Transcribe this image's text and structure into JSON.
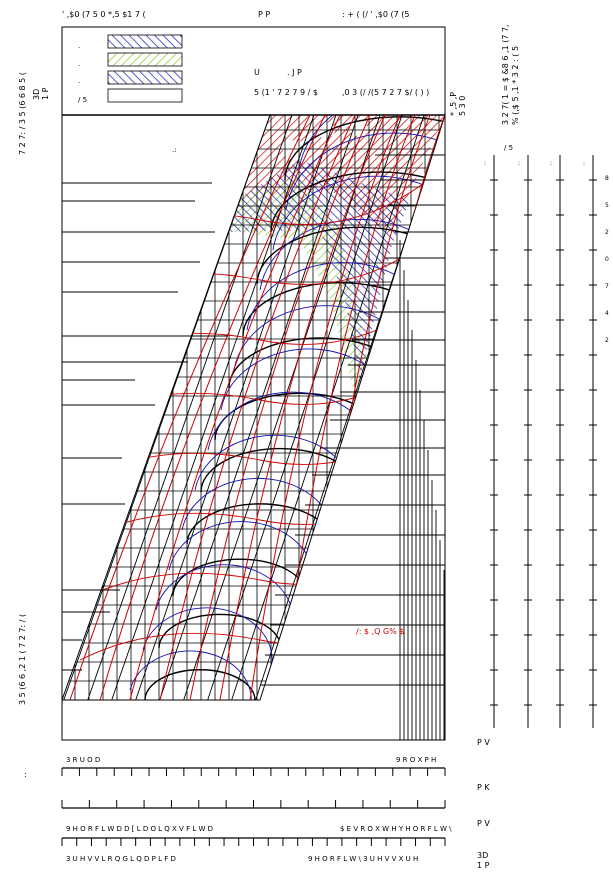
{
  "top_labels": {
    "left": "' ,$0 (7 5 0 *,5 $1 7 (",
    "middle": "P P",
    "right": ": + ( (/ ' ,$0 (7 (5"
  },
  "left_side_labels": {
    "pa": "3D",
    "nm": "1 P",
    "top": "7 2 7: / 3 5 (6 6 8 5 (",
    "bottom": "3 5 (6 6 ,2 1 ( 7 2 7: / (",
    "colon": ":"
  },
  "legend": {
    "items": [
      {
        "mark": ".",
        "fill": "red-hatch"
      },
      {
        "mark": ".",
        "fill": "green-hatch"
      },
      {
        "mark": ".",
        "fill": "blue-hatch"
      },
      {
        "mark": "/ 5",
        "fill": "none"
      }
    ],
    "rpm_label": "U",
    "kgm_label": ". J  P",
    "rated_label": "5 (1 ' 7 2 7 9 / $",
    "limit_label": ",0 3 (/ /(5 7 2 7 $/ ( ) )"
  },
  "right_side_labels": {
    "kgm_top": "* ,5 ,P",
    "kgm_bottom": "5 3 0",
    "power_header": "3 2 7( 1 = $ &8 6 ,1 (7 7,",
    "power_header2": "% (,$ 5 ,1 * 3 2 : ( 5",
    "ls": "/ 5",
    "power_ticks": [
      "8",
      "5",
      "2",
      "0",
      "7",
      "4",
      "2"
    ]
  },
  "chart_annotation": "/: $  ,Q G% $",
  "chart_dots": ".:",
  "bottom_labels": {
    "prop": "3 R U O D",
    "vol": "9 R O X P H",
    "p_v1": "P  V",
    "p_k": "P  K",
    "p_v2": "P  V",
    "vel_axial": "9 H O R F L W D  D [ L D O  L Q  X V F L W D",
    "abs_vel": "$ E V R O X W H  Y H O R F L W \\",
    "pressure": "3 U H V V L R Q  G L Q D P L F D",
    "vel_pressure": "9 H O R F L W \\  3 U H V V X U H",
    "pa": "3D",
    "nm": "1 P"
  },
  "chart_data": {
    "type": "heatmap",
    "description_layers": [
      "red-hatch",
      "green-hatch",
      "blue-hatch"
    ],
    "colors": {
      "red": "#d00000",
      "green": "#8acc30",
      "blue": "#1010b0",
      "black": "#000000"
    }
  }
}
